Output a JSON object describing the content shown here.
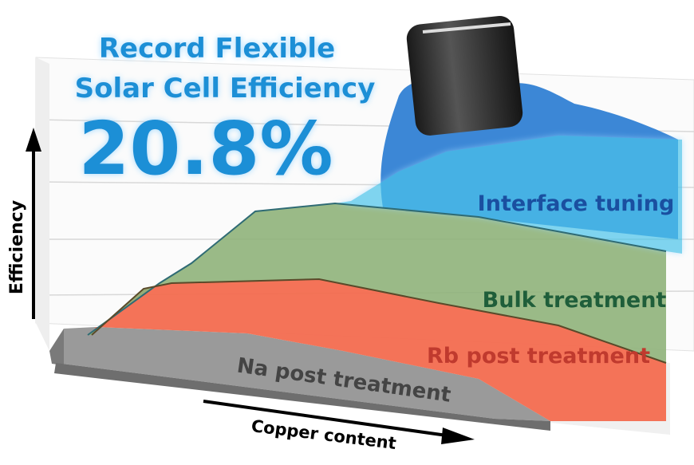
{
  "title": {
    "line1": "Record Flexible",
    "line2": "Solar Cell Efficiency",
    "highlight": "20.8%"
  },
  "layers": [
    {
      "label": "Interface tuning"
    },
    {
      "label": "Bulk treatment"
    },
    {
      "label": "Rb post treatment"
    },
    {
      "label": "Na post treatment"
    }
  ],
  "axes": {
    "y_label": "Efficiency",
    "x_label": "Copper content"
  }
}
